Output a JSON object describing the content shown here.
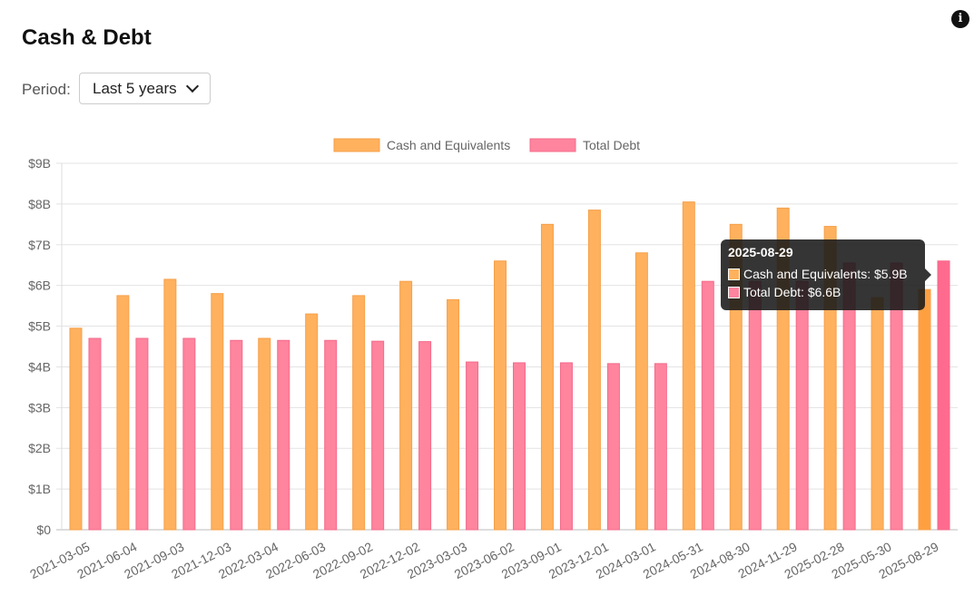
{
  "header": {
    "title": "Cash & Debt",
    "info_icon": "info-icon"
  },
  "controls": {
    "period_label": "Period:",
    "period_value": "Last 5 years"
  },
  "colors": {
    "cash": "#FFB15E",
    "cash_border": "#F5A04A",
    "debt": "#FF849E",
    "debt_border": "#F36B8A",
    "cash_active": "#FFA040",
    "debt_active": "#FF6B8E"
  },
  "tooltip": {
    "title": "2025-08-29",
    "rows": [
      {
        "label": "Cash and Equivalents: $5.9B"
      },
      {
        "label": "Total Debt: $6.6B"
      }
    ]
  },
  "chart_data": {
    "type": "bar",
    "categories": [
      "2021-03-05",
      "2021-06-04",
      "2021-09-03",
      "2021-12-03",
      "2022-03-04",
      "2022-06-03",
      "2022-09-02",
      "2022-12-02",
      "2023-03-03",
      "2023-06-02",
      "2023-09-01",
      "2023-12-01",
      "2024-03-01",
      "2024-05-31",
      "2024-08-30",
      "2024-11-29",
      "2025-02-28",
      "2025-05-30",
      "2025-08-29"
    ],
    "series": [
      {
        "name": "Cash and Equivalents",
        "values": [
          4.95,
          5.75,
          6.15,
          5.8,
          4.7,
          5.3,
          5.75,
          6.1,
          5.65,
          6.6,
          7.5,
          7.85,
          6.8,
          8.05,
          7.5,
          7.9,
          7.45,
          5.7,
          5.9
        ]
      },
      {
        "name": "Total Debt",
        "values": [
          4.7,
          4.7,
          4.7,
          4.65,
          4.65,
          4.65,
          4.63,
          4.62,
          4.12,
          4.1,
          4.1,
          4.08,
          4.08,
          6.1,
          6.1,
          6.1,
          6.55,
          6.55,
          6.6
        ]
      }
    ],
    "ylim": [
      0,
      9
    ],
    "yticks": [
      "$0",
      "$1B",
      "$2B",
      "$3B",
      "$4B",
      "$5B",
      "$6B",
      "$7B",
      "$8B",
      "$9B"
    ],
    "legend_position": "top-center",
    "grid": true,
    "active_index": 18
  }
}
